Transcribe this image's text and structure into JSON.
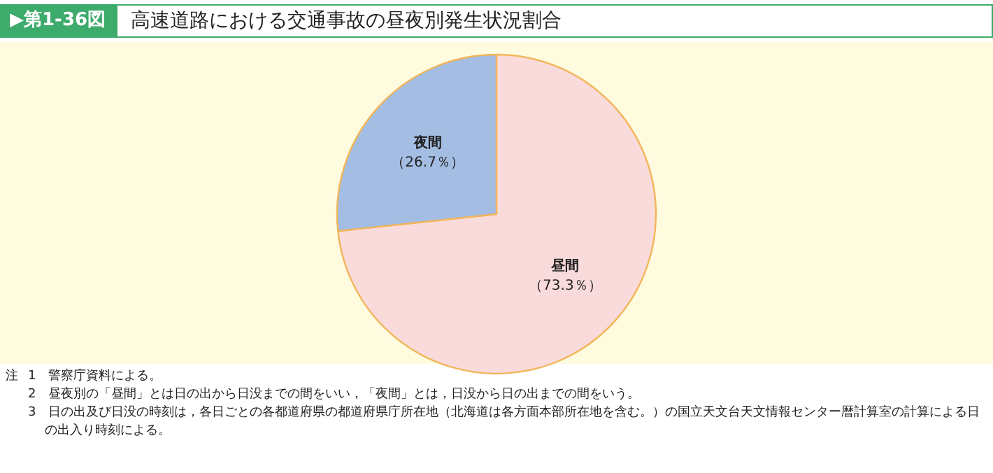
{
  "chart_data": {
    "type": "pie",
    "subtitle": "▶第1-36図",
    "title": "高速道路における交通事故の昼夜別発生状況割合",
    "categories": [
      "昼間",
      "夜間"
    ],
    "values": [
      73.3,
      26.7
    ],
    "colors": [
      "#fadbdb",
      "#a3bde3"
    ],
    "value_labels": [
      "（73.3％）",
      "（26.7％）"
    ],
    "annotations": [
      "注",
      "1　警察庁資料による。",
      "2　昼夜別の「昼間」とは日の出から日没までの間をいい，「夜間」とは，日没から日の出までの間をいう。",
      "3　日の出及び日没の時刻は，各日ごとの各都道府県の都道府県庁所在地（北海道は各方面本部所在地を含む。）の国立天文台天文情報センター暦計算室の計算による日の出入り時刻による。"
    ]
  }
}
